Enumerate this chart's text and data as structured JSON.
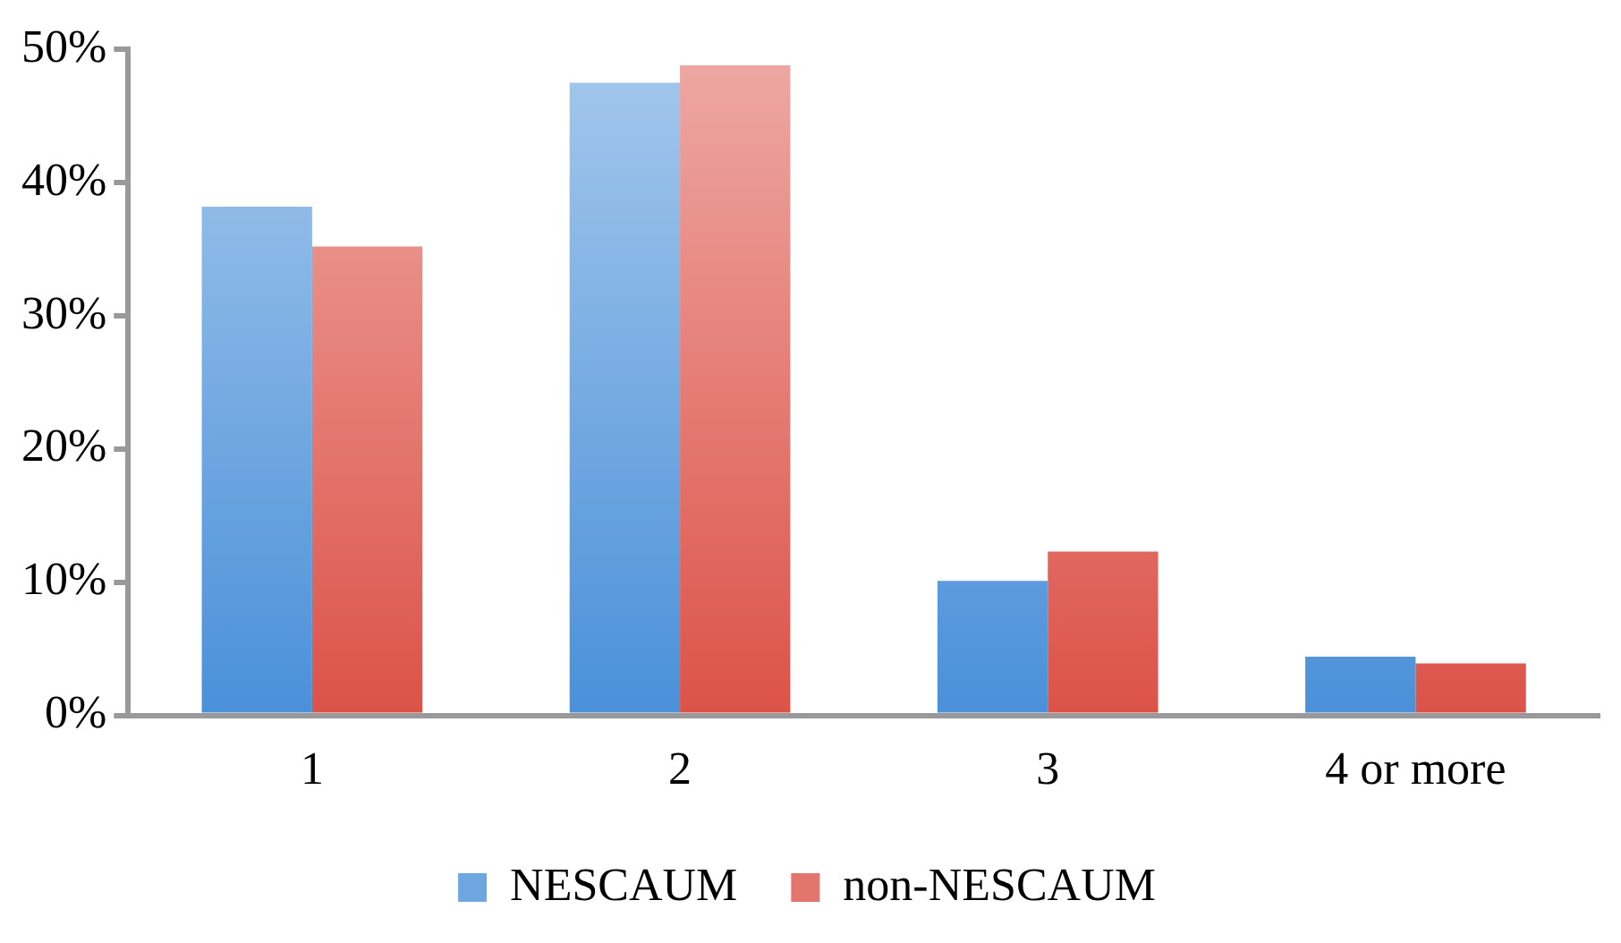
{
  "chart_data": {
    "type": "bar",
    "categories": [
      "1",
      "2",
      "3",
      "4 or more"
    ],
    "series": [
      {
        "name": "NESCAUM",
        "color": "#4a90d9",
        "values": [
          38.2,
          47.5,
          10.1,
          4.4
        ]
      },
      {
        "name": "non-NESCAUM",
        "color": "#dc5248",
        "values": [
          35.2,
          48.8,
          12.3,
          3.9
        ]
      }
    ],
    "ylim": [
      0,
      50
    ],
    "yticks": [
      {
        "value": 0,
        "label": "0%"
      },
      {
        "value": 10,
        "label": "10%"
      },
      {
        "value": 20,
        "label": "20%"
      },
      {
        "value": 30,
        "label": "30%"
      },
      {
        "value": 40,
        "label": "40%"
      },
      {
        "value": 50,
        "label": "50%"
      }
    ],
    "grid": false,
    "legend": "bottom"
  }
}
